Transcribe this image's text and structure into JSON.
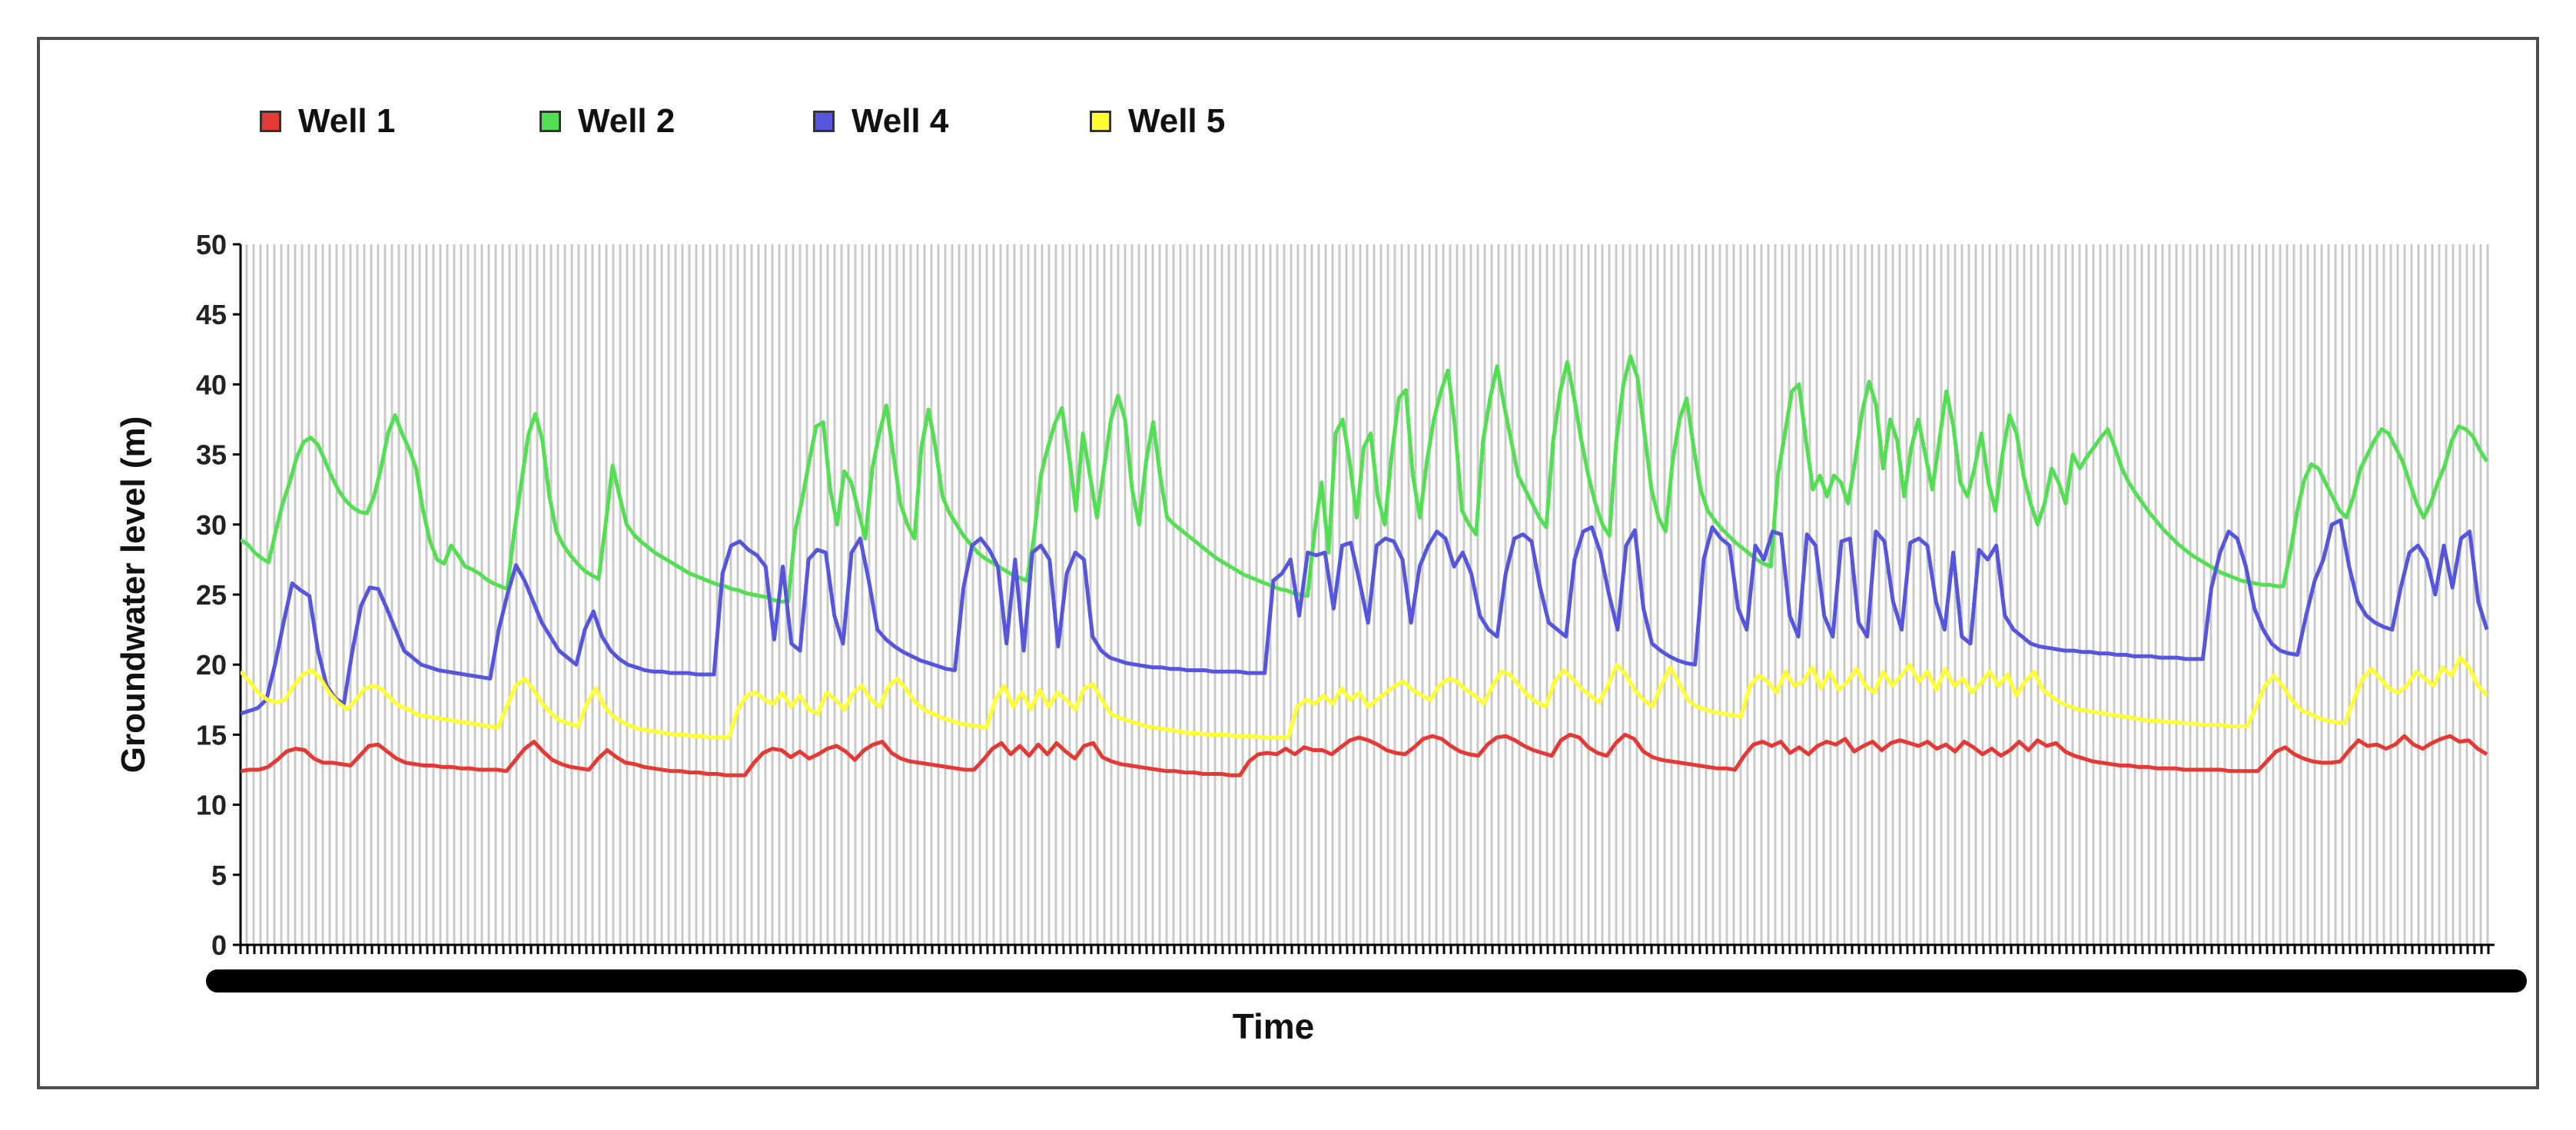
{
  "chart_data": {
    "type": "line",
    "title": "",
    "xlabel": "Time",
    "ylabel": "Groundwater level (m)",
    "ylim": [
      0,
      50
    ],
    "yticks": [
      0,
      5,
      10,
      15,
      20,
      25,
      30,
      35,
      40,
      45,
      50
    ],
    "grid": "vertical",
    "legend_position": "top",
    "series": [
      {
        "name": "Well 1",
        "color": "#e53935",
        "values": [
          12.4,
          12.5,
          12.5,
          12.7,
          13.2,
          13.8,
          14.0,
          13.9,
          13.3,
          13.0,
          13.0,
          12.9,
          12.8,
          13.5,
          14.2,
          14.3,
          13.8,
          13.3,
          13.0,
          12.9,
          12.8,
          12.8,
          12.7,
          12.7,
          12.6,
          12.6,
          12.5,
          12.5,
          12.5,
          12.4,
          13.2,
          14.0,
          14.5,
          13.8,
          13.2,
          12.9,
          12.7,
          12.6,
          12.5,
          13.3,
          13.9,
          13.4,
          13.0,
          12.9,
          12.7,
          12.6,
          12.5,
          12.4,
          12.4,
          12.3,
          12.3,
          12.2,
          12.2,
          12.1,
          12.1,
          12.1,
          13.0,
          13.7,
          14.0,
          13.9,
          13.4,
          13.8,
          13.3,
          13.6,
          14.0,
          14.2,
          13.8,
          13.2,
          13.9,
          14.3,
          14.5,
          13.7,
          13.3,
          13.1,
          13.0,
          12.9,
          12.8,
          12.7,
          12.6,
          12.5,
          12.5,
          13.2,
          14.0,
          14.4,
          13.6,
          14.2,
          13.5,
          14.3,
          13.6,
          14.4,
          13.8,
          13.3,
          14.2,
          14.4,
          13.4,
          13.1,
          12.9,
          12.8,
          12.7,
          12.6,
          12.5,
          12.4,
          12.4,
          12.3,
          12.3,
          12.2,
          12.2,
          12.2,
          12.1,
          12.1,
          13.1,
          13.6,
          13.7,
          13.6,
          14.0,
          13.6,
          14.1,
          13.9,
          13.9,
          13.6,
          14.1,
          14.6,
          14.8,
          14.6,
          14.3,
          13.9,
          13.7,
          13.6,
          14.1,
          14.7,
          14.9,
          14.7,
          14.2,
          13.8,
          13.6,
          13.5,
          14.3,
          14.8,
          14.9,
          14.6,
          14.2,
          13.9,
          13.7,
          13.5,
          14.6,
          15.0,
          14.8,
          14.1,
          13.7,
          13.5,
          14.4,
          15.0,
          14.7,
          13.8,
          13.4,
          13.2,
          13.1,
          13.0,
          12.9,
          12.8,
          12.7,
          12.6,
          12.6,
          12.5,
          13.5,
          14.3,
          14.5,
          14.2,
          14.5,
          13.7,
          14.1,
          13.6,
          14.2,
          14.5,
          14.3,
          14.7,
          13.8,
          14.2,
          14.5,
          13.9,
          14.4,
          14.6,
          14.4,
          14.2,
          14.5,
          14.0,
          14.3,
          13.8,
          14.5,
          14.1,
          13.6,
          14.0,
          13.5,
          13.9,
          14.5,
          13.9,
          14.6,
          14.2,
          14.4,
          13.8,
          13.5,
          13.3,
          13.1,
          13.0,
          12.9,
          12.8,
          12.8,
          12.7,
          12.7,
          12.6,
          12.6,
          12.6,
          12.5,
          12.5,
          12.5,
          12.5,
          12.5,
          12.4,
          12.4,
          12.4,
          12.4,
          13.1,
          13.8,
          14.1,
          13.6,
          13.3,
          13.1,
          13.0,
          13.0,
          13.1,
          13.9,
          14.6,
          14.2,
          14.3,
          14.0,
          14.3,
          14.9,
          14.3,
          14.0,
          14.4,
          14.7,
          14.9,
          14.5,
          14.6,
          14.0,
          13.6
        ]
      },
      {
        "name": "Well 2",
        "color": "#52e052",
        "values": [
          28.9,
          28.6,
          28.0,
          27.6,
          27.3,
          29.5,
          31.5,
          33.0,
          34.8,
          35.9,
          36.2,
          35.7,
          34.6,
          33.4,
          32.4,
          31.7,
          31.2,
          30.9,
          30.8,
          32.0,
          34.0,
          36.5,
          37.8,
          36.5,
          35.4,
          34.0,
          31.0,
          28.8,
          27.5,
          27.2,
          28.5,
          27.8,
          27.0,
          26.8,
          26.5,
          26.1,
          25.8,
          25.6,
          25.4,
          29.5,
          33.0,
          36.4,
          37.9,
          36.0,
          32.0,
          29.5,
          28.5,
          27.8,
          27.2,
          26.7,
          26.4,
          26.1,
          30.0,
          34.2,
          32.0,
          30.0,
          29.3,
          28.8,
          28.4,
          28.0,
          27.7,
          27.4,
          27.1,
          26.8,
          26.5,
          26.3,
          26.1,
          25.9,
          25.7,
          25.6,
          25.4,
          25.3,
          25.1,
          25.0,
          24.9,
          24.8,
          24.6,
          24.5,
          24.5,
          29.5,
          31.8,
          34.5,
          37.0,
          37.3,
          32.5,
          30.0,
          33.8,
          33.0,
          31.0,
          29.0,
          34.0,
          36.5,
          38.5,
          35.0,
          31.5,
          30.0,
          29.0,
          35.5,
          38.2,
          35.5,
          32.0,
          30.8,
          30.0,
          29.2,
          28.6,
          28.0,
          27.6,
          27.3,
          27.0,
          26.7,
          26.4,
          26.2,
          26.0,
          29.0,
          33.5,
          35.5,
          37.2,
          38.3,
          35.0,
          31.0,
          36.5,
          33.5,
          30.5,
          34.0,
          37.5,
          39.2,
          37.5,
          32.5,
          30.0,
          34.5,
          37.3,
          33.5,
          30.5,
          30.0,
          29.6,
          29.2,
          28.8,
          28.4,
          28.0,
          27.6,
          27.3,
          27.0,
          26.7,
          26.4,
          26.2,
          26.0,
          25.8,
          25.6,
          25.4,
          25.3,
          25.1,
          25.0,
          24.9,
          29.5,
          33.0,
          28.0,
          36.5,
          37.5,
          34.5,
          30.5,
          35.5,
          36.5,
          32.0,
          30.0,
          35.0,
          39.0,
          39.6,
          33.5,
          30.5,
          34.5,
          37.5,
          39.5,
          41.0,
          37.0,
          31.0,
          30.0,
          29.3,
          36.0,
          39.0,
          41.3,
          38.5,
          36.0,
          33.5,
          32.5,
          31.5,
          30.5,
          29.8,
          36.0,
          39.5,
          41.6,
          39.0,
          36.0,
          33.5,
          31.5,
          30.0,
          29.2,
          36.0,
          40.0,
          42.0,
          40.5,
          36.5,
          32.5,
          30.5,
          29.5,
          34.5,
          37.5,
          39.0,
          35.5,
          32.5,
          31.0,
          30.3,
          29.7,
          29.2,
          28.7,
          28.3,
          27.9,
          27.5,
          27.2,
          27.0,
          33.5,
          36.5,
          39.5,
          40.0,
          36.0,
          32.5,
          33.5,
          32.0,
          33.5,
          33.0,
          31.5,
          34.5,
          38.0,
          40.2,
          38.5,
          34.0,
          37.5,
          36.0,
          32.0,
          35.5,
          37.5,
          35.0,
          32.5,
          36.0,
          39.5,
          37.0,
          33.0,
          32.0,
          34.0,
          36.5,
          33.0,
          31.0,
          35.0,
          37.8,
          36.5,
          33.5,
          31.5,
          30.0,
          31.5,
          34.0,
          33.0,
          31.5,
          35.0,
          34.0,
          34.8,
          35.5,
          36.2,
          36.8,
          35.5,
          34.0,
          33.0,
          32.2,
          31.5,
          30.8,
          30.2,
          29.6,
          29.1,
          28.6,
          28.2,
          27.8,
          27.5,
          27.2,
          26.9,
          26.6,
          26.4,
          26.2,
          26.0,
          25.9,
          25.8,
          25.7,
          25.7,
          25.6,
          25.6,
          28.0,
          31.0,
          33.2,
          34.3,
          34.0,
          33.0,
          32.0,
          31.0,
          30.5,
          32.0,
          34.0,
          35.0,
          36.0,
          36.8,
          36.5,
          35.5,
          34.5,
          33.0,
          31.5,
          30.5,
          31.5,
          33.0,
          34.2,
          36.0,
          37.0,
          36.8,
          36.3,
          35.3,
          34.5
        ]
      },
      {
        "name": "Well 4",
        "color": "#5555dd",
        "values": [
          16.5,
          16.7,
          16.9,
          17.5,
          20.0,
          23.0,
          25.8,
          25.3,
          24.9,
          21.0,
          18.5,
          17.6,
          17.2,
          21.0,
          24.2,
          25.5,
          25.4,
          24.0,
          22.5,
          21.0,
          20.5,
          20.0,
          19.8,
          19.6,
          19.5,
          19.4,
          19.3,
          19.2,
          19.1,
          19.0,
          22.5,
          25.0,
          27.1,
          26.0,
          24.5,
          23.0,
          22.0,
          21.0,
          20.5,
          20.0,
          22.5,
          23.8,
          22.0,
          21.0,
          20.4,
          20.0,
          19.8,
          19.6,
          19.5,
          19.5,
          19.4,
          19.4,
          19.4,
          19.3,
          19.3,
          19.3,
          26.5,
          28.5,
          28.8,
          28.2,
          27.8,
          27.0,
          21.8,
          27.0,
          21.5,
          21.0,
          27.5,
          28.2,
          28.0,
          23.5,
          21.5,
          28.0,
          29.0,
          26.0,
          22.5,
          21.8,
          21.3,
          20.9,
          20.6,
          20.3,
          20.1,
          19.9,
          19.7,
          19.6,
          25.5,
          28.5,
          29.0,
          28.2,
          27.0,
          21.5,
          27.5,
          21.0,
          28.0,
          28.5,
          27.5,
          21.3,
          26.5,
          28.0,
          27.5,
          22.0,
          21.0,
          20.5,
          20.3,
          20.1,
          20.0,
          19.9,
          19.8,
          19.8,
          19.7,
          19.7,
          19.6,
          19.6,
          19.6,
          19.5,
          19.5,
          19.5,
          19.5,
          19.4,
          19.4,
          19.4,
          26.0,
          26.5,
          27.5,
          23.5,
          28.0,
          27.8,
          28.0,
          24.0,
          28.5,
          28.7,
          26.0,
          23.0,
          28.5,
          29.0,
          28.8,
          27.5,
          23.0,
          27.0,
          28.5,
          29.5,
          29.0,
          27.0,
          28.0,
          26.5,
          23.5,
          22.5,
          22.0,
          26.5,
          29.0,
          29.3,
          28.8,
          25.5,
          23.0,
          22.5,
          22.0,
          27.5,
          29.5,
          29.8,
          28.0,
          25.0,
          22.5,
          28.5,
          29.6,
          24.0,
          21.5,
          21.0,
          20.6,
          20.3,
          20.1,
          20.0,
          27.5,
          29.8,
          29.0,
          28.5,
          24.0,
          22.5,
          28.5,
          27.5,
          29.5,
          29.3,
          23.5,
          22.0,
          29.3,
          28.5,
          23.5,
          22.0,
          28.8,
          29.0,
          23.0,
          22.0,
          29.5,
          28.8,
          24.5,
          22.5,
          28.7,
          29.0,
          28.5,
          24.5,
          22.5,
          28.0,
          22.0,
          21.5,
          28.2,
          27.5,
          28.5,
          23.5,
          22.5,
          22.0,
          21.5,
          21.3,
          21.2,
          21.1,
          21.0,
          21.0,
          20.9,
          20.9,
          20.8,
          20.8,
          20.7,
          20.7,
          20.6,
          20.6,
          20.6,
          20.5,
          20.5,
          20.5,
          20.4,
          20.4,
          20.4,
          25.5,
          28.0,
          29.5,
          29.0,
          27.0,
          24.0,
          22.5,
          21.5,
          21.0,
          20.8,
          20.7,
          23.5,
          26.0,
          27.5,
          30.0,
          30.3,
          27.0,
          24.5,
          23.5,
          23.0,
          22.7,
          22.5,
          25.5,
          28.0,
          28.5,
          27.5,
          25.0,
          28.5,
          25.5,
          29.0,
          29.5,
          24.5,
          22.5
        ]
      },
      {
        "name": "Well 5",
        "color": "#ffff33",
        "values": [
          19.5,
          18.8,
          18.0,
          17.5,
          17.3,
          17.5,
          18.5,
          19.3,
          19.6,
          19.0,
          18.0,
          17.3,
          16.8,
          17.5,
          18.3,
          18.5,
          18.2,
          17.5,
          17.0,
          16.8,
          16.4,
          16.3,
          16.2,
          16.1,
          16.0,
          15.9,
          15.8,
          15.7,
          15.6,
          15.5,
          17.0,
          18.5,
          19.0,
          18.2,
          17.2,
          16.5,
          16.0,
          15.8,
          15.6,
          17.2,
          18.3,
          17.0,
          16.3,
          15.9,
          15.6,
          15.4,
          15.3,
          15.2,
          15.1,
          15.0,
          15.0,
          14.9,
          14.9,
          14.8,
          14.8,
          14.8,
          16.8,
          17.8,
          18.0,
          17.5,
          17.2,
          18.0,
          17.0,
          17.8,
          16.8,
          16.5,
          18.0,
          17.5,
          16.8,
          18.0,
          18.5,
          17.5,
          17.0,
          18.5,
          19.0,
          18.2,
          17.3,
          16.8,
          16.5,
          16.2,
          16.0,
          15.8,
          15.7,
          15.6,
          15.5,
          17.5,
          18.5,
          17.0,
          18.0,
          16.8,
          18.2,
          17.0,
          18.0,
          17.5,
          16.8,
          18.3,
          18.6,
          17.5,
          16.5,
          16.2,
          16.0,
          15.8,
          15.6,
          15.5,
          15.4,
          15.3,
          15.2,
          15.1,
          15.1,
          15.0,
          15.0,
          15.0,
          14.9,
          14.9,
          14.9,
          14.8,
          14.8,
          14.8,
          14.8,
          17.0,
          17.5,
          17.2,
          17.8,
          17.2,
          18.3,
          17.5,
          18.0,
          17.0,
          17.5,
          18.0,
          18.5,
          18.8,
          18.2,
          17.8,
          17.5,
          18.5,
          19.0,
          18.8,
          18.2,
          17.8,
          17.2,
          18.5,
          19.5,
          19.3,
          18.5,
          17.8,
          17.3,
          17.0,
          18.8,
          19.6,
          19.0,
          18.3,
          17.8,
          17.3,
          18.5,
          20.0,
          19.3,
          18.2,
          17.5,
          17.0,
          18.5,
          19.8,
          18.7,
          17.5,
          17.0,
          16.8,
          16.6,
          16.5,
          16.4,
          16.3,
          18.5,
          19.2,
          18.8,
          18.0,
          19.5,
          18.5,
          18.8,
          19.8,
          18.3,
          19.5,
          18.2,
          18.8,
          19.7,
          18.5,
          18.0,
          19.5,
          18.5,
          19.2,
          20.0,
          18.8,
          19.5,
          18.2,
          19.7,
          18.5,
          19.0,
          18.0,
          18.7,
          19.5,
          18.5,
          19.3,
          17.8,
          18.8,
          19.5,
          18.2,
          17.7,
          17.3,
          17.0,
          16.8,
          16.7,
          16.6,
          16.5,
          16.4,
          16.3,
          16.2,
          16.1,
          16.0,
          16.0,
          15.9,
          15.9,
          15.8,
          15.8,
          15.7,
          15.7,
          15.7,
          15.6,
          15.6,
          15.6,
          17.0,
          18.5,
          19.2,
          18.5,
          17.5,
          16.8,
          16.5,
          16.2,
          16.0,
          15.9,
          15.8,
          17.5,
          19.0,
          19.7,
          19.0,
          18.3,
          18.0,
          18.5,
          19.5,
          19.0,
          18.5,
          19.8,
          19.2,
          20.5,
          19.8,
          18.5,
          17.8
        ]
      }
    ]
  }
}
